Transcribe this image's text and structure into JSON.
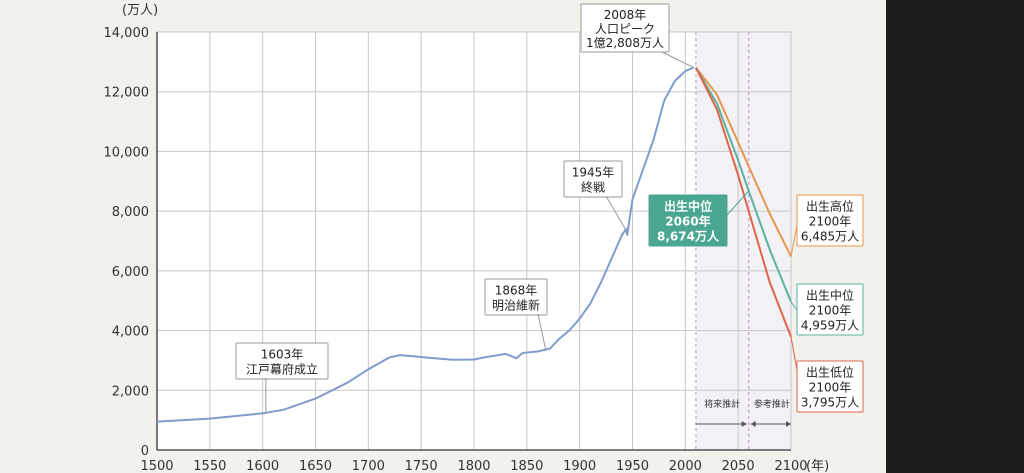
{
  "chart_data": {
    "type": "line",
    "ylabel": "(万人)",
    "xlabel": "(年)",
    "xlim": [
      1500,
      2100
    ],
    "ylim": [
      0,
      14000
    ],
    "xticks": [
      "1500",
      "1550",
      "1600",
      "1650",
      "1700",
      "1750",
      "1800",
      "1850",
      "1900",
      "1950",
      "2000",
      "2050",
      "2100"
    ],
    "yticks": [
      "0",
      "2,000",
      "4,000",
      "6,000",
      "8,000",
      "10,000",
      "12,000",
      "14,000"
    ],
    "grid": true,
    "series": [
      {
        "name": "",
        "color": "#7f9ccf",
        "points": [
          [
            1500,
            950
          ],
          [
            1550,
            1050
          ],
          [
            1600,
            1230
          ],
          [
            1620,
            1350
          ],
          [
            1650,
            1720
          ],
          [
            1680,
            2250
          ],
          [
            1700,
            2700
          ],
          [
            1720,
            3100
          ],
          [
            1730,
            3180
          ],
          [
            1745,
            3130
          ],
          [
            1760,
            3080
          ],
          [
            1780,
            3020
          ],
          [
            1800,
            3030
          ],
          [
            1810,
            3100
          ],
          [
            1830,
            3220
          ],
          [
            1835,
            3150
          ],
          [
            1840,
            3070
          ],
          [
            1846,
            3250
          ],
          [
            1860,
            3300
          ],
          [
            1872,
            3400
          ],
          [
            1880,
            3700
          ],
          [
            1890,
            4000
          ],
          [
            1900,
            4400
          ],
          [
            1910,
            4900
          ],
          [
            1920,
            5600
          ],
          [
            1930,
            6400
          ],
          [
            1940,
            7200
          ],
          [
            1944,
            7400
          ],
          [
            1945,
            7200
          ],
          [
            1950,
            8400
          ],
          [
            1960,
            9400
          ],
          [
            1970,
            10400
          ],
          [
            1980,
            11700
          ],
          [
            1990,
            12360
          ],
          [
            2000,
            12690
          ],
          [
            2008,
            12808
          ]
        ]
      },
      {
        "name": "出生高位",
        "color": "#e8964b",
        "points": [
          [
            2010,
            12806
          ],
          [
            2030,
            11900
          ],
          [
            2050,
            10300
          ],
          [
            2060,
            9500
          ],
          [
            2080,
            7900
          ],
          [
            2100,
            6485
          ]
        ]
      },
      {
        "name": "出生中位",
        "color": "#5ab3a0",
        "points": [
          [
            2010,
            12806
          ],
          [
            2030,
            11600
          ],
          [
            2050,
            9700
          ],
          [
            2060,
            8674
          ],
          [
            2080,
            6700
          ],
          [
            2100,
            4959
          ]
        ]
      },
      {
        "name": "出生低位",
        "color": "#e0644a",
        "points": [
          [
            2010,
            12806
          ],
          [
            2030,
            11400
          ],
          [
            2050,
            9200
          ],
          [
            2060,
            8000
          ],
          [
            2080,
            5600
          ],
          [
            2100,
            3795
          ]
        ]
      }
    ],
    "annotations": [
      {
        "lines": [
          "1603年",
          "江戸幕府成立"
        ]
      },
      {
        "lines": [
          "1868年",
          "明治維新"
        ]
      },
      {
        "lines": [
          "1945年",
          "終戦"
        ]
      },
      {
        "lines": [
          "2008年",
          "人口ピーク",
          "1億2,808万人"
        ]
      },
      {
        "lines": [
          "出生中位",
          "2060年",
          "8,674万人"
        ]
      },
      {
        "lines": [
          "出生高位",
          "2100年",
          "6,485万人"
        ]
      },
      {
        "lines": [
          "出生中位",
          "2100年",
          "4,959万人"
        ]
      },
      {
        "lines": [
          "出生低位",
          "2100年",
          "3,795万人"
        ]
      }
    ],
    "period_labels": [
      "将来推計",
      "参考推計"
    ]
  }
}
